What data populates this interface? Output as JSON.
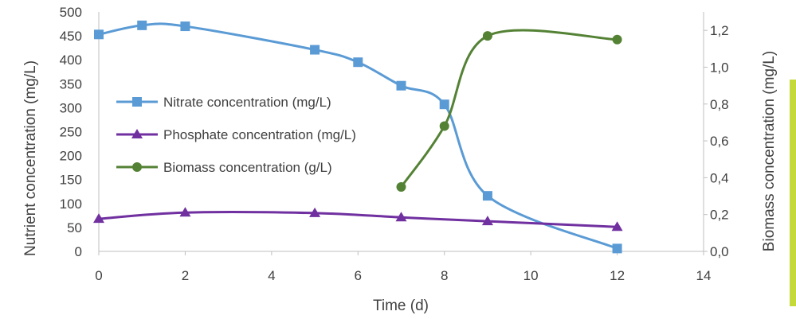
{
  "chart_data": {
    "type": "line",
    "title": "",
    "xlabel": "Time (d)",
    "ylabel": "Nutrient concentration (mg/L)",
    "y2label": "Biomass concentration (mg/L)",
    "xlim": [
      0,
      14
    ],
    "ylim": [
      0,
      500
    ],
    "y2lim": [
      0,
      1.3
    ],
    "x_ticks": [
      "0",
      "2",
      "4",
      "6",
      "8",
      "10",
      "12",
      "14"
    ],
    "y_ticks": [
      "0",
      "50",
      "100",
      "150",
      "200",
      "250",
      "300",
      "350",
      "400",
      "450",
      "500"
    ],
    "y2_ticks": [
      "0,0",
      "0,2",
      "0,4",
      "0,6",
      "0,8",
      "1,0",
      "1,2"
    ],
    "grid": false,
    "legend_position": "left-middle",
    "series": [
      {
        "name": "Nitrate concentration (mg/L)",
        "axis": "left",
        "marker": "square",
        "color": "#5b9bd5",
        "x": [
          0,
          1,
          2,
          5,
          6,
          7,
          8,
          9,
          12
        ],
        "y": [
          453,
          472,
          470,
          421,
          395,
          346,
          307,
          116,
          6
        ]
      },
      {
        "name": "Phosphate concentration (mg/L)",
        "axis": "left",
        "marker": "triangle",
        "color": "#7030a0",
        "x": [
          0,
          2,
          5,
          7,
          9,
          12
        ],
        "y": [
          68,
          81,
          80,
          71,
          63,
          51
        ]
      },
      {
        "name": "Biomass concentration (g/L)",
        "axis": "right",
        "marker": "circle",
        "color": "#548235",
        "x": [
          7,
          8,
          9,
          12
        ],
        "y": [
          0.35,
          0.68,
          1.17,
          1.15
        ]
      }
    ]
  }
}
